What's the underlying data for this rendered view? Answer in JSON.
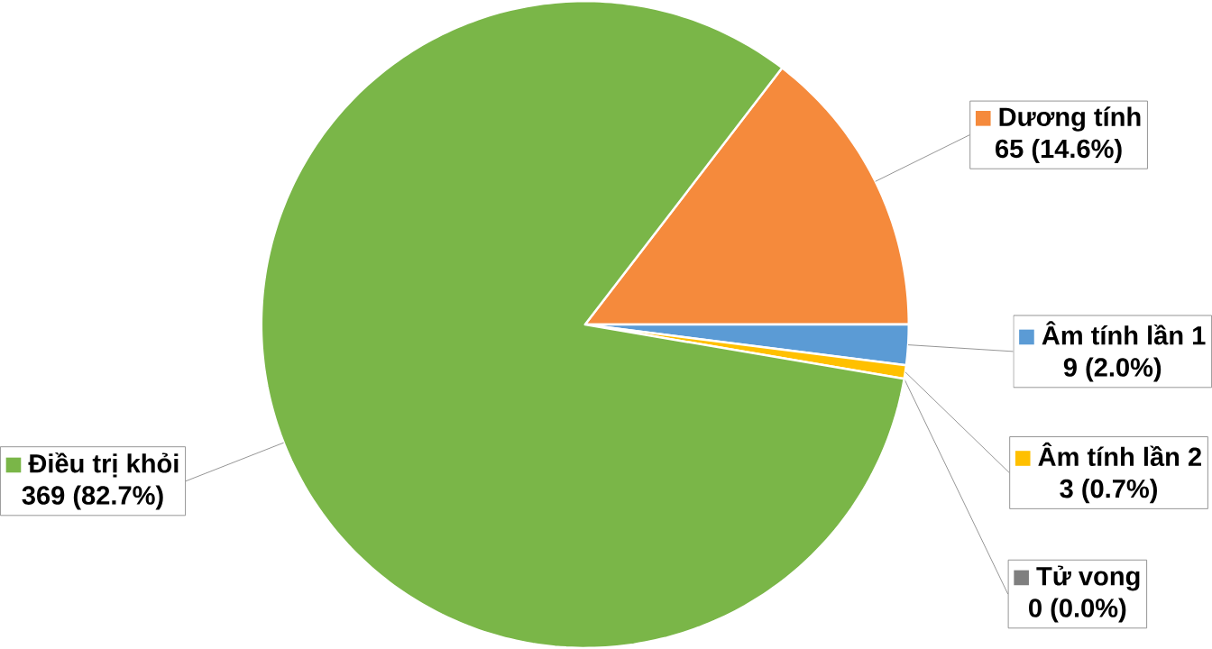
{
  "chart_data": {
    "type": "pie",
    "categories": [
      "Dương tính",
      "Âm tính lần 1",
      "Âm tính lần 2",
      "Tử vong",
      "Điều trị khỏi"
    ],
    "values": [
      65,
      9,
      3,
      0,
      369
    ],
    "colors": [
      "#f58a3c",
      "#5b9bd5",
      "#ffc000",
      "#7f7f7f",
      "#7ab648"
    ],
    "value_labels": [
      "65 (14.6%)",
      "9 (2.0%)",
      "3 (0.7%)",
      "0 (0.0%)",
      "369 (82.7%)"
    ],
    "legend": "right"
  }
}
